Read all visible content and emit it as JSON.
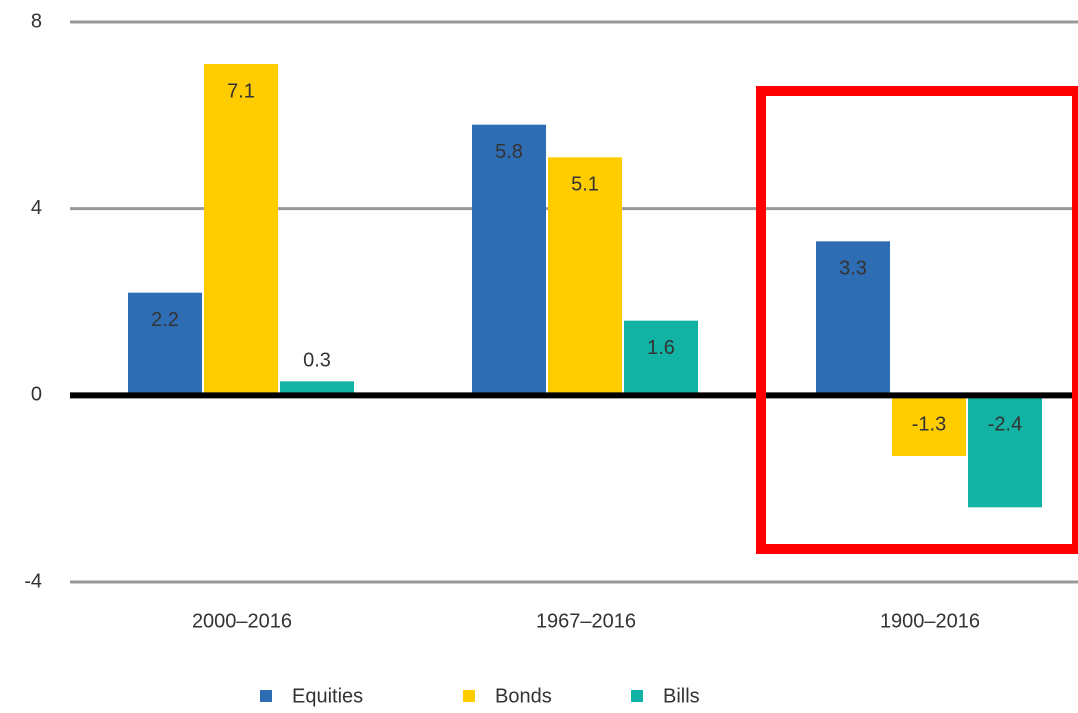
{
  "chart_data": {
    "type": "bar",
    "categories": [
      "2000–2016",
      "1967–2016",
      "1900–2016"
    ],
    "series": [
      {
        "name": "Equities",
        "color": "#2e6db4",
        "values": [
          2.2,
          5.8,
          3.3
        ]
      },
      {
        "name": "Bonds",
        "color": "#ffcc00",
        "values": [
          7.1,
          5.1,
          -1.3
        ]
      },
      {
        "name": "Bills",
        "color": "#12b3a4",
        "values": [
          0.3,
          1.6,
          -2.4
        ]
      }
    ],
    "ylim": [
      -4,
      8
    ],
    "yticks": [
      -4,
      0,
      4,
      8
    ],
    "grid": true,
    "legend": "bottom"
  }
}
